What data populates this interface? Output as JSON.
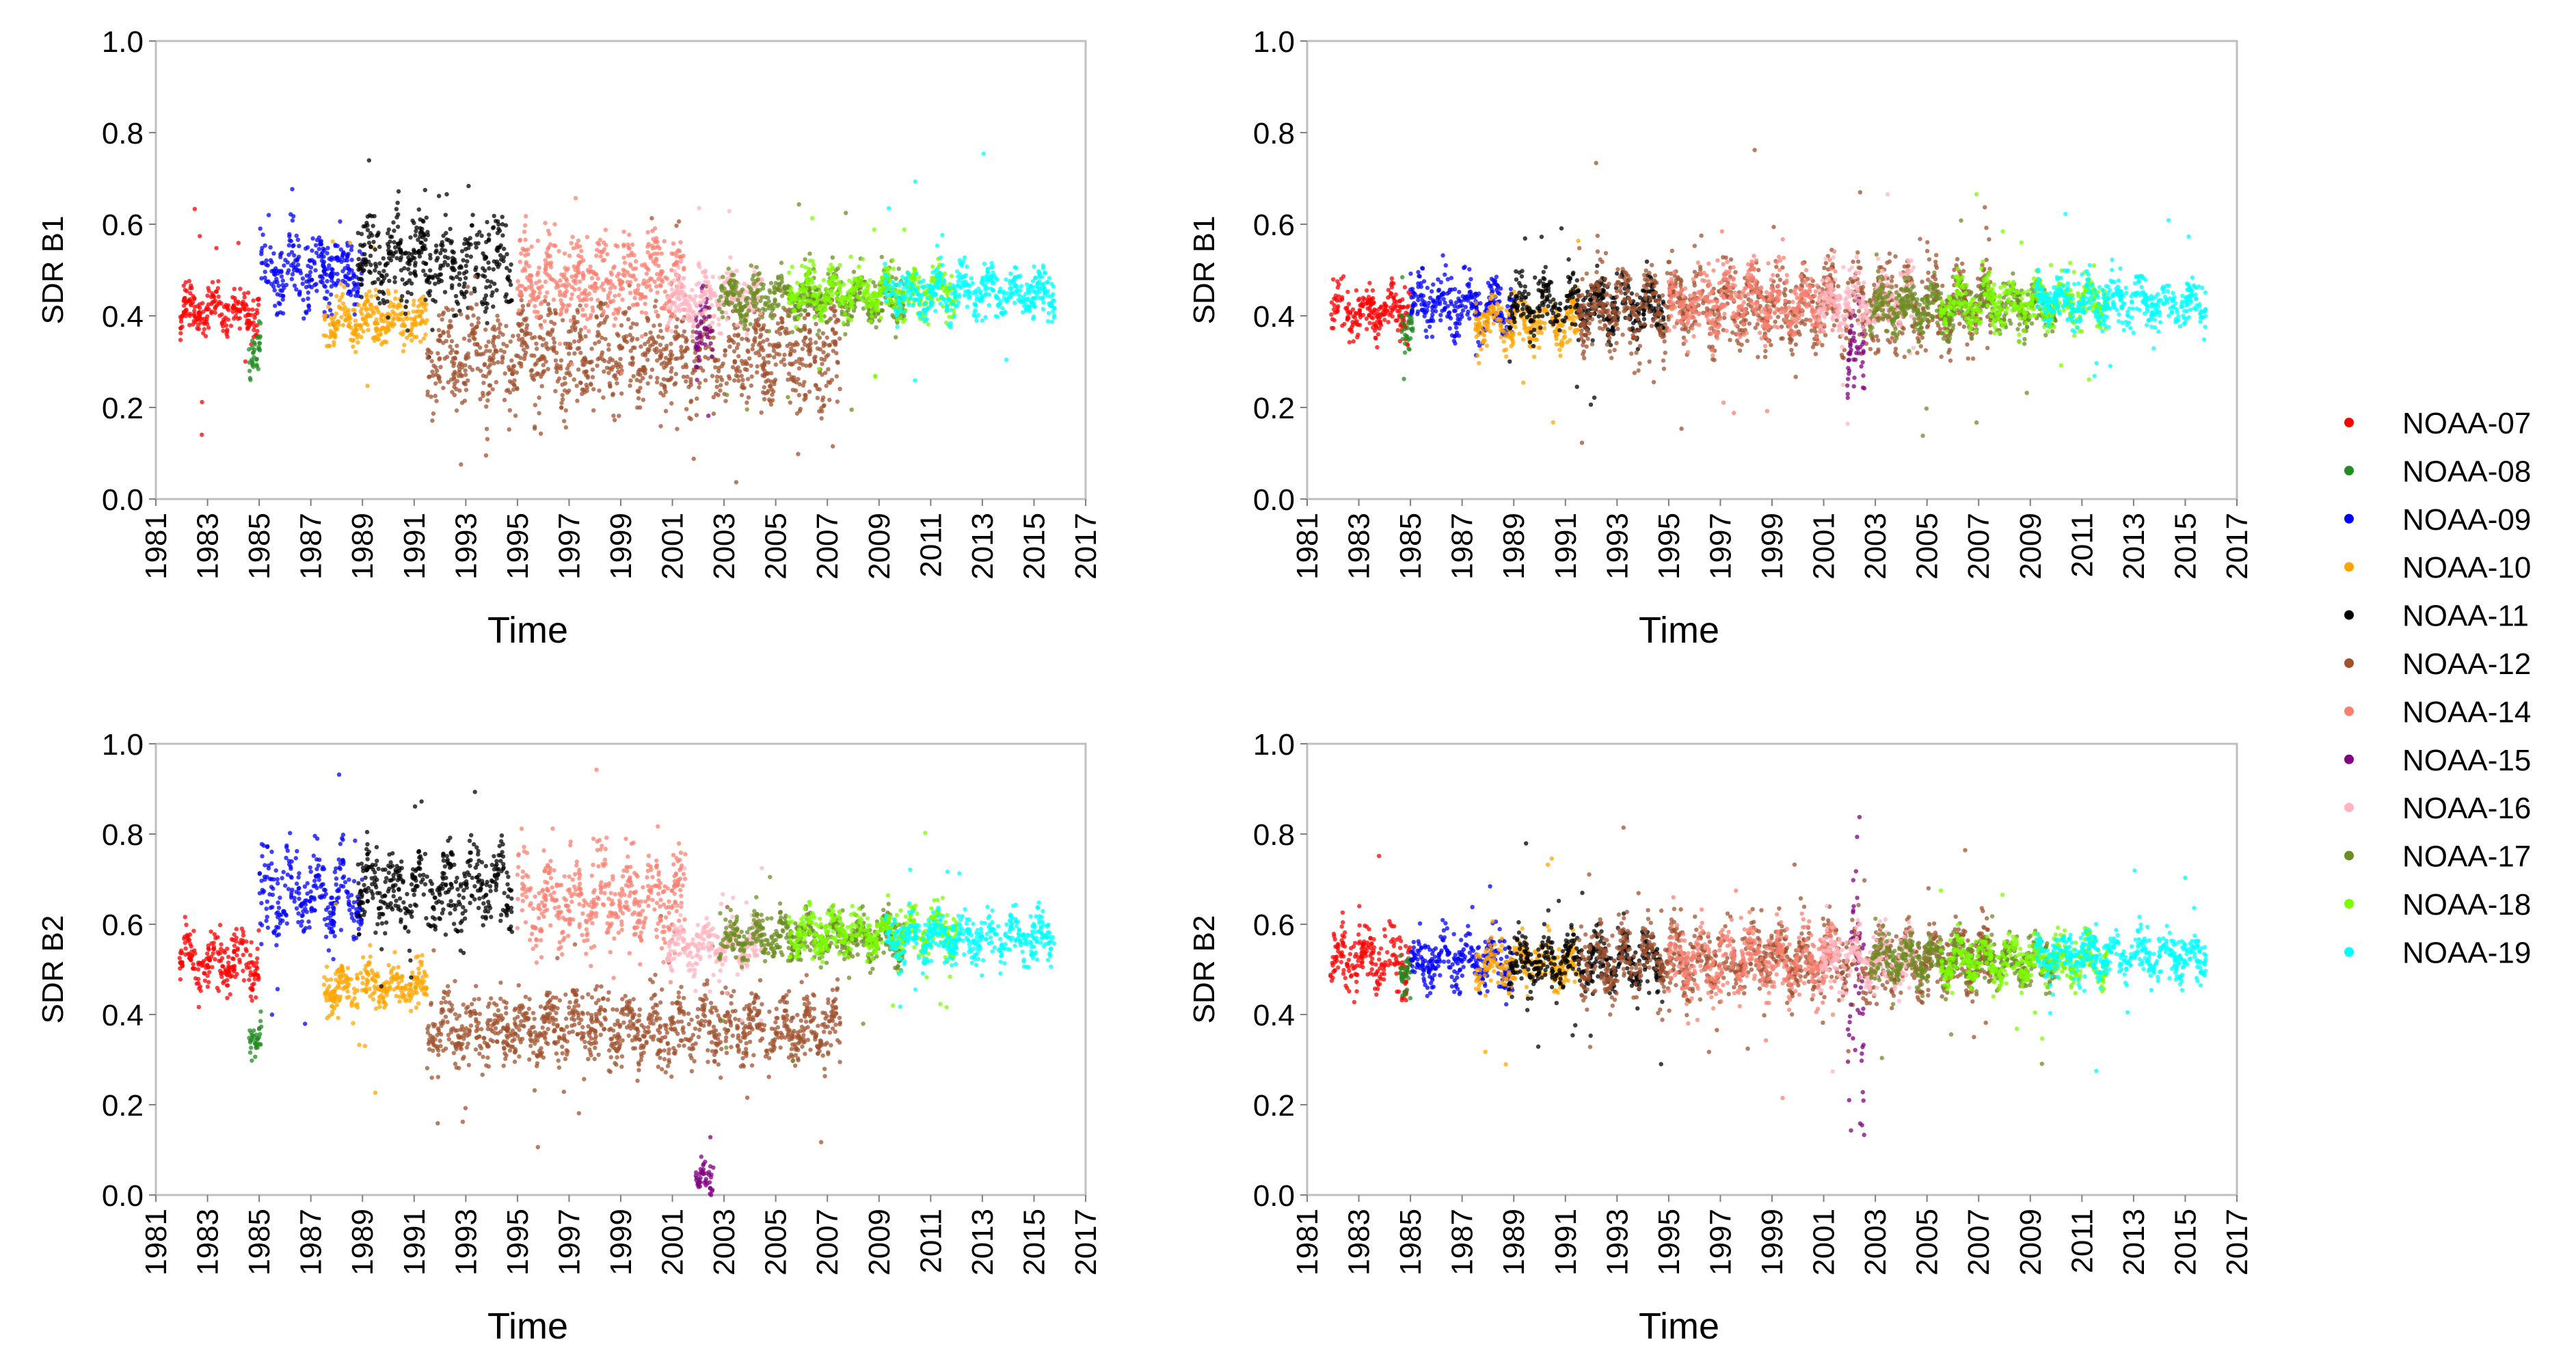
{
  "chart_data": {
    "type": "scatter",
    "x_tick_labels": [
      "1981",
      "1983",
      "1985",
      "1987",
      "1989",
      "1991",
      "1993",
      "1995",
      "1997",
      "1999",
      "2001",
      "2003",
      "2005",
      "2007",
      "2009",
      "2011",
      "2013",
      "2015",
      "2017"
    ],
    "xlim": [
      1981,
      2017
    ],
    "legend_position": "right",
    "series": [
      {
        "name": "NOAA-07",
        "color": "#ff0000",
        "start": 1981.9,
        "end": 1985.0
      },
      {
        "name": "NOAA-08",
        "color": "#228b22",
        "start": 1984.6,
        "end": 1985.1
      },
      {
        "name": "NOAA-09",
        "color": "#0000ff",
        "start": 1985.0,
        "end": 1989.0
      },
      {
        "name": "NOAA-10",
        "color": "#ffa500",
        "start": 1987.5,
        "end": 1991.5
      },
      {
        "name": "NOAA-11",
        "color": "#000000",
        "start": 1988.8,
        "end": 1994.8
      },
      {
        "name": "NOAA-12",
        "color": "#a0522d",
        "start": 1991.5,
        "end": 2007.5
      },
      {
        "name": "NOAA-14",
        "color": "#fa8072",
        "start": 1995.0,
        "end": 2001.5
      },
      {
        "name": "NOAA-15",
        "color": "#800080",
        "start": 2001.9,
        "end": 2002.6
      },
      {
        "name": "NOAA-16",
        "color": "#ffb6c1",
        "start": 2000.8,
        "end": 2004.5
      },
      {
        "name": "NOAA-17",
        "color": "#6b8e23",
        "start": 2002.8,
        "end": 2010.0
      },
      {
        "name": "NOAA-18",
        "color": "#7cfc00",
        "start": 2005.5,
        "end": 2012.0
      },
      {
        "name": "NOAA-19",
        "color": "#00ffff",
        "start": 2009.2,
        "end": 2015.8
      }
    ],
    "panels": [
      {
        "id": "top-left",
        "ylabel": "SDR B1",
        "xlabel": "Time",
        "ylim": [
          0.0,
          1.0
        ],
        "y_tick_labels": [
          "0.0",
          "0.2",
          "0.4",
          "0.6",
          "0.8",
          "1.0"
        ],
        "series_levels": [
          {
            "name": "NOAA-07",
            "level": 0.41,
            "noise": 0.04
          },
          {
            "name": "NOAA-08",
            "level": 0.33,
            "noise": 0.04
          },
          {
            "name": "NOAA-09",
            "level": 0.5,
            "noise": 0.06
          },
          {
            "name": "NOAA-10",
            "level": 0.39,
            "noise": 0.04
          },
          {
            "name": "NOAA-11",
            "level": 0.52,
            "noise": 0.07
          },
          {
            "name": "NOAA-12",
            "level": 0.31,
            "noise": 0.08
          },
          {
            "name": "NOAA-14",
            "level": 0.48,
            "noise": 0.07
          },
          {
            "name": "NOAA-15",
            "level": 0.35,
            "noise": 0.06
          },
          {
            "name": "NOAA-16",
            "level": 0.44,
            "noise": 0.05
          },
          {
            "name": "NOAA-17",
            "level": 0.44,
            "noise": 0.04
          },
          {
            "name": "NOAA-18",
            "level": 0.45,
            "noise": 0.04
          },
          {
            "name": "NOAA-19",
            "level": 0.45,
            "noise": 0.04
          }
        ]
      },
      {
        "id": "top-right",
        "ylabel": "SDR B1",
        "xlabel": "Time",
        "ylim": [
          0.0,
          1.0
        ],
        "y_tick_labels": [
          "0.0",
          "0.2",
          "0.4",
          "0.6",
          "0.8",
          "1.0"
        ],
        "series_levels": [
          {
            "name": "NOAA-07",
            "level": 0.41,
            "noise": 0.04
          },
          {
            "name": "NOAA-08",
            "level": 0.38,
            "noise": 0.04
          },
          {
            "name": "NOAA-09",
            "level": 0.42,
            "noise": 0.05
          },
          {
            "name": "NOAA-10",
            "level": 0.39,
            "noise": 0.04
          },
          {
            "name": "NOAA-11",
            "level": 0.42,
            "noise": 0.05
          },
          {
            "name": "NOAA-12",
            "level": 0.42,
            "noise": 0.07
          },
          {
            "name": "NOAA-14",
            "level": 0.43,
            "noise": 0.06
          },
          {
            "name": "NOAA-15",
            "level": 0.32,
            "noise": 0.07
          },
          {
            "name": "NOAA-16",
            "level": 0.43,
            "noise": 0.05
          },
          {
            "name": "NOAA-17",
            "level": 0.42,
            "noise": 0.04
          },
          {
            "name": "NOAA-18",
            "level": 0.43,
            "noise": 0.04
          },
          {
            "name": "NOAA-19",
            "level": 0.43,
            "noise": 0.04
          }
        ]
      },
      {
        "id": "bottom-left",
        "ylabel": "SDR B2",
        "xlabel": "Time",
        "ylim": [
          0.0,
          1.0
        ],
        "y_tick_labels": [
          "0.0",
          "0.2",
          "0.4",
          "0.6",
          "0.8",
          "1.0"
        ],
        "series_levels": [
          {
            "name": "NOAA-07",
            "level": 0.52,
            "noise": 0.05
          },
          {
            "name": "NOAA-08",
            "level": 0.36,
            "noise": 0.04
          },
          {
            "name": "NOAA-09",
            "level": 0.66,
            "noise": 0.07
          },
          {
            "name": "NOAA-10",
            "level": 0.46,
            "noise": 0.04
          },
          {
            "name": "NOAA-11",
            "level": 0.68,
            "noise": 0.07
          },
          {
            "name": "NOAA-12",
            "level": 0.37,
            "noise": 0.06
          },
          {
            "name": "NOAA-14",
            "level": 0.65,
            "noise": 0.08
          },
          {
            "name": "NOAA-15",
            "level": 0.03,
            "noise": 0.03
          },
          {
            "name": "NOAA-16",
            "level": 0.55,
            "noise": 0.04
          },
          {
            "name": "NOAA-17",
            "level": 0.57,
            "noise": 0.04
          },
          {
            "name": "NOAA-18",
            "level": 0.58,
            "noise": 0.04
          },
          {
            "name": "NOAA-19",
            "level": 0.57,
            "noise": 0.04
          }
        ]
      },
      {
        "id": "bottom-right",
        "ylabel": "SDR B2",
        "xlabel": "Time",
        "ylim": [
          0.0,
          1.0
        ],
        "y_tick_labels": [
          "0.0",
          "0.2",
          "0.4",
          "0.6",
          "0.8",
          "1.0"
        ],
        "series_levels": [
          {
            "name": "NOAA-07",
            "level": 0.52,
            "noise": 0.05
          },
          {
            "name": "NOAA-08",
            "level": 0.5,
            "noise": 0.04
          },
          {
            "name": "NOAA-09",
            "level": 0.52,
            "noise": 0.05
          },
          {
            "name": "NOAA-10",
            "level": 0.51,
            "noise": 0.04
          },
          {
            "name": "NOAA-11",
            "level": 0.52,
            "noise": 0.05
          },
          {
            "name": "NOAA-12",
            "level": 0.52,
            "noise": 0.06
          },
          {
            "name": "NOAA-14",
            "level": 0.52,
            "noise": 0.06
          },
          {
            "name": "NOAA-15",
            "level": 0.4,
            "noise": 0.25
          },
          {
            "name": "NOAA-16",
            "level": 0.52,
            "noise": 0.05
          },
          {
            "name": "NOAA-17",
            "level": 0.52,
            "noise": 0.04
          },
          {
            "name": "NOAA-18",
            "level": 0.52,
            "noise": 0.04
          },
          {
            "name": "NOAA-19",
            "level": 0.53,
            "noise": 0.04
          }
        ]
      }
    ]
  }
}
